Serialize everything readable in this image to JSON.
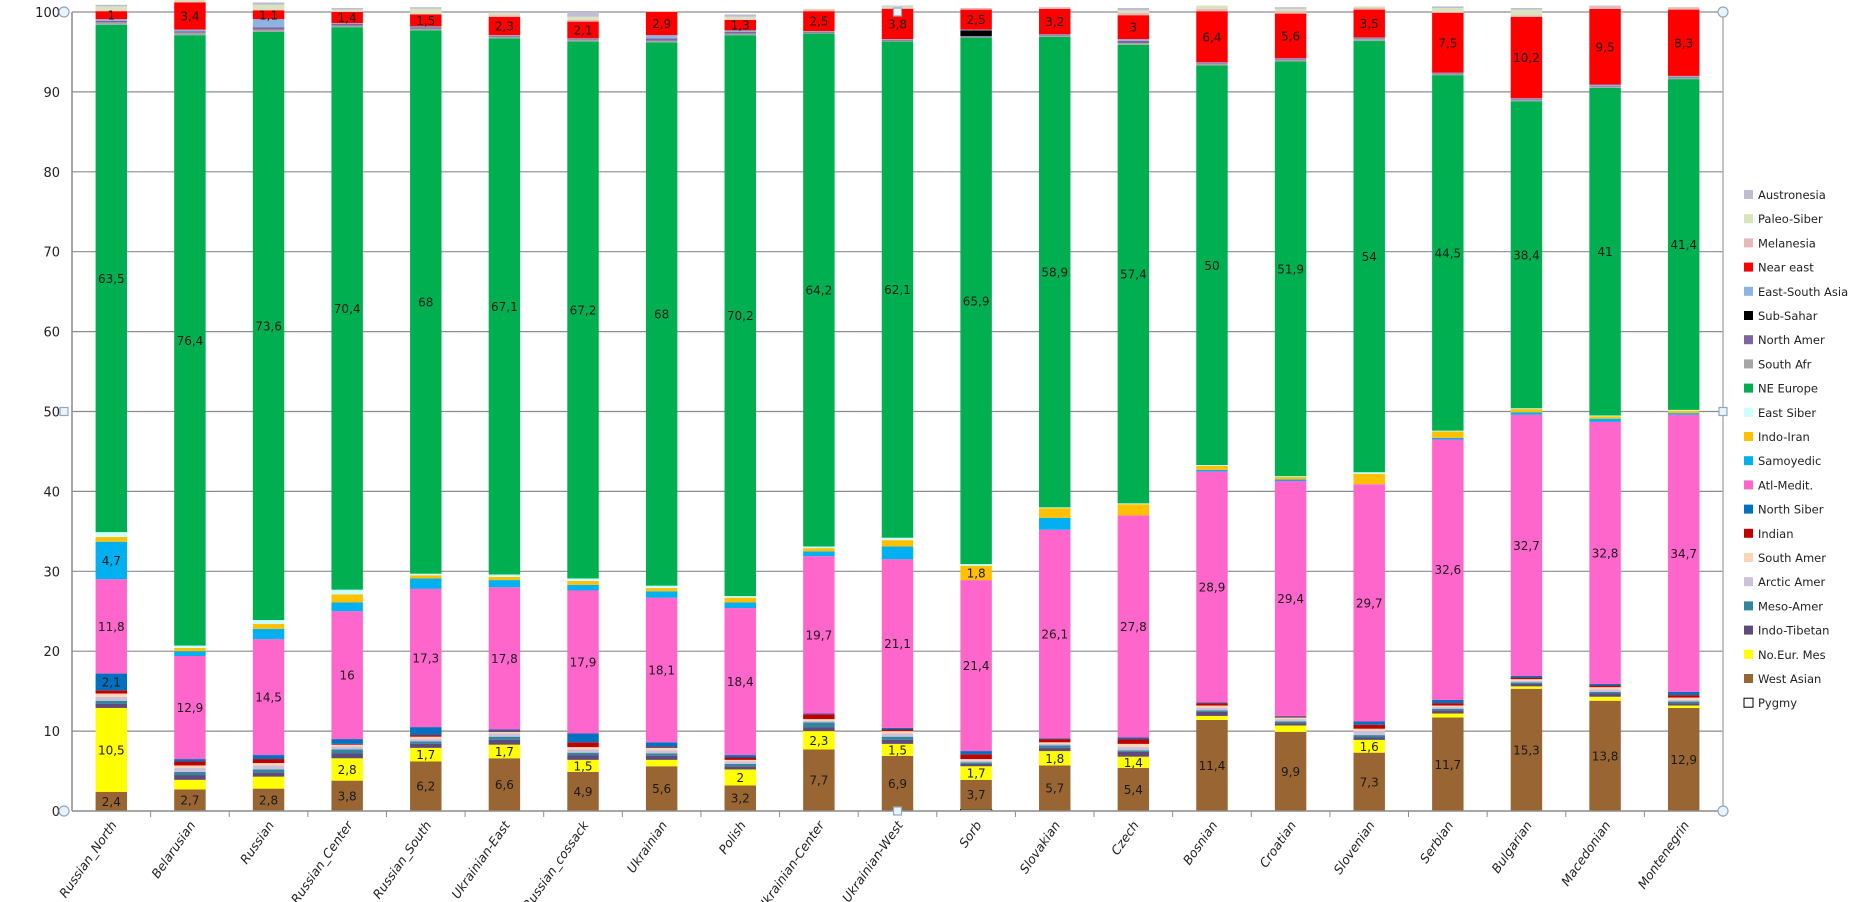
{
  "chart_data": {
    "type": "bar",
    "stacked": true,
    "title": "",
    "xlabel": "",
    "ylabel": "",
    "ylim": [
      0,
      100
    ],
    "yticks": [
      0,
      10,
      20,
      30,
      40,
      50,
      60,
      70,
      80,
      90,
      100
    ],
    "ytick_labels": [
      "0",
      "10",
      "20",
      "30",
      "40",
      "50",
      "60",
      "70",
      "80",
      "90",
      "100"
    ],
    "grid": true,
    "legend_position": "right",
    "categories": [
      "Russian_North",
      "Belarusian",
      "Russian",
      "Russian_Center",
      "Russian_South",
      "Ukrainian-East",
      "Russian_cossack",
      "Ukrainian",
      "Polish",
      "Ukrainian-Center",
      "Ukrainian-West",
      "Sorb",
      "Slovakian",
      "Czech",
      "Bosnian",
      "Croatian",
      "Slovenian",
      "Serbian",
      "Bulgarian",
      "Macedonian",
      "Montenegrin"
    ],
    "series": [
      {
        "name": "Pygmy",
        "color": "#ffffff",
        "values": [
          0,
          0,
          0,
          0,
          0,
          0,
          0,
          0,
          0,
          0,
          0,
          0.2,
          0,
          0,
          0,
          0,
          0,
          0,
          0,
          0,
          0
        ],
        "labels": []
      },
      {
        "name": "West Asian",
        "color": "#996633",
        "values": [
          2.4,
          2.7,
          2.8,
          3.8,
          6.2,
          6.6,
          4.9,
          5.6,
          3.2,
          7.7,
          6.9,
          3.7,
          5.7,
          5.4,
          11.4,
          9.9,
          7.3,
          11.7,
          15.3,
          13.8,
          12.9
        ],
        "labels": [
          "2,4",
          "2,7",
          "2,8",
          "3,8",
          "6,2",
          "6,6",
          "4,9",
          "5,6",
          "3,2",
          "7,7",
          "6,9",
          "3,7",
          "5,7",
          "5,4",
          "11,4",
          "9,9",
          "7,3",
          "11,7",
          "15,3",
          "13,8",
          "12,9"
        ]
      },
      {
        "name": "No.Eur. Mes",
        "color": "#ffff00",
        "values": [
          10.5,
          1.2,
          1.5,
          2.8,
          1.7,
          1.7,
          1.5,
          0.8,
          2,
          2.3,
          1.5,
          1.7,
          1.8,
          1.4,
          0.5,
          0.8,
          1.6,
          0.5,
          0.3,
          0.5,
          0.3
        ],
        "labels": [
          "10,5",
          "",
          "",
          "2,8",
          "1,7",
          "1,7",
          "1,5",
          "",
          "2",
          "2,3",
          "1,5",
          "1,7",
          "1,8",
          "1,4",
          "",
          "",
          "1,6",
          "",
          "",
          "",
          ""
        ]
      },
      {
        "name": "Indo-Tibetan",
        "color": "#604a7b",
        "values": [
          0.5,
          0.6,
          0.5,
          0.6,
          0.5,
          0.6,
          0.6,
          0.5,
          0.4,
          0.5,
          0.5,
          0.3,
          0.4,
          0.6,
          0.5,
          0.3,
          0.3,
          0.4,
          0.3,
          0.4,
          0.3
        ],
        "labels": []
      },
      {
        "name": "Meso-Amer",
        "color": "#31859c",
        "values": [
          0.4,
          0.4,
          0.4,
          0.5,
          0.3,
          0.4,
          0.3,
          0.3,
          0.3,
          0.6,
          0.4,
          0.2,
          0.3,
          0.2,
          0.2,
          0.2,
          0.3,
          0.2,
          0.2,
          0.2,
          0.2
        ],
        "labels": []
      },
      {
        "name": "Arctic Amer",
        "color": "#ccc0da",
        "values": [
          0.5,
          0.5,
          0.5,
          0.4,
          0.3,
          0.4,
          0.4,
          0.4,
          0.3,
          0.2,
          0.4,
          0.2,
          0.2,
          0.4,
          0.3,
          0.3,
          0.5,
          0.2,
          0.2,
          0.3,
          0.2
        ],
        "labels": []
      },
      {
        "name": "South Amer",
        "color": "#fcd5b5",
        "values": [
          0.4,
          0.3,
          0.3,
          0.2,
          0.3,
          0.2,
          0.3,
          0.3,
          0.2,
          0.2,
          0.3,
          0.2,
          0.2,
          0.4,
          0.3,
          0.2,
          0.3,
          0.2,
          0.2,
          0.3,
          0.3
        ],
        "labels": []
      },
      {
        "name": "Indian",
        "color": "#c00000",
        "values": [
          0.4,
          0.5,
          0.5,
          0.1,
          0.2,
          0.1,
          0.6,
          0.1,
          0.3,
          0.6,
          0.2,
          0.6,
          0.4,
          0.6,
          0.3,
          0.1,
          0.5,
          0.3,
          0.2,
          0.2,
          0.3
        ],
        "labels": []
      },
      {
        "name": "North Siber",
        "color": "#0070c0",
        "values": [
          2.1,
          0.3,
          0.5,
          0.6,
          1,
          0.2,
          1.1,
          0.6,
          0.3,
          0.1,
          0.2,
          0.4,
          0.1,
          0.2,
          0.1,
          0.1,
          0.4,
          0.4,
          0.2,
          0.2,
          0.4
        ],
        "labels": [
          "2,1",
          "",
          "",
          "",
          "",
          "",
          "",
          "",
          "",
          "",
          "",
          "",
          "",
          "",
          "",
          "",
          "",
          "",
          "",
          "",
          ""
        ]
      },
      {
        "name": "Atl-Medit.",
        "color": "#ff66cc",
        "values": [
          11.8,
          12.9,
          14.5,
          16,
          17.3,
          17.8,
          17.9,
          18.1,
          18.4,
          19.7,
          21.1,
          21.4,
          26.1,
          27.8,
          28.9,
          29.4,
          29.7,
          32.6,
          32.7,
          32.8,
          34.7
        ],
        "labels": [
          "11,8",
          "12,9",
          "14,5",
          "16",
          "17,3",
          "17,8",
          "17,9",
          "18,1",
          "18,4",
          "19,7",
          "21,1",
          "21,4",
          "26,1",
          "27,8",
          "28,9",
          "29,4",
          "29,7",
          "32,6",
          "32,7",
          "32,8",
          "34,7"
        ]
      },
      {
        "name": "Samoyedic",
        "color": "#00b0f0",
        "values": [
          4.7,
          0.6,
          1.3,
          1.1,
          1.3,
          0.9,
          0.7,
          0.8,
          0.7,
          0.6,
          1.6,
          0,
          1.5,
          0,
          0.2,
          0.2,
          0,
          0.2,
          0.3,
          0.4,
          0.2
        ],
        "labels": [
          "4,7",
          "",
          "",
          "",
          "",
          "",
          "",
          "",
          "",
          "",
          "",
          "",
          "",
          "",
          "",
          "",
          "",
          "",
          "",
          "",
          ""
        ]
      },
      {
        "name": "Indo-Iran",
        "color": "#ffc000",
        "values": [
          0.6,
          0.4,
          0.6,
          1,
          0.4,
          0.4,
          0.5,
          0.4,
          0.6,
          0.4,
          0.8,
          1.8,
          1.2,
          1.4,
          0.5,
          0.3,
          1.3,
          0.8,
          0.4,
          0.3,
          0.3
        ],
        "labels": [
          "",
          "",
          "",
          "",
          "",
          "",
          "",
          "",
          "",
          "",
          "",
          "1,8",
          "",
          "",
          "",
          "",
          "",
          "",
          "",
          "",
          ""
        ]
      },
      {
        "name": "East Siber",
        "color": "#ccffff",
        "values": [
          0.6,
          0.3,
          0.5,
          0.6,
          0.2,
          0.3,
          0.3,
          0.3,
          0.2,
          0.2,
          0.3,
          0.2,
          0.1,
          0.1,
          0.1,
          0.1,
          0.2,
          0.1,
          0.1,
          0.1,
          0.1
        ],
        "labels": []
      },
      {
        "name": "NE Europe",
        "color": "#00b050",
        "values": [
          63.5,
          76.4,
          73.6,
          70.4,
          68,
          67.1,
          67.2,
          68,
          70.2,
          64.2,
          62.1,
          65.9,
          58.9,
          57.4,
          50,
          51.9,
          54,
          44.5,
          38.4,
          41,
          41.4
        ],
        "labels": [
          "63,5",
          "76,4",
          "73,6",
          "70,4",
          "68",
          "67,1",
          "67,2",
          "68",
          "70,2",
          "64,2",
          "62,1",
          "65,9",
          "58,9",
          "57,4",
          "50",
          "51,9",
          "54",
          "44,5",
          "38,4",
          "41",
          "41,4"
        ]
      },
      {
        "name": "South Afr",
        "color": "#a6a6a6",
        "values": [
          0.3,
          0.3,
          0.3,
          0.2,
          0.2,
          0.2,
          0.2,
          0.2,
          0.2,
          0.1,
          0.1,
          0.1,
          0.1,
          0.2,
          0.2,
          0.2,
          0.2,
          0.1,
          0.2,
          0.1,
          0.2
        ],
        "labels": []
      },
      {
        "name": "North Amer",
        "color": "#8064a2",
        "values": [
          0.2,
          0.2,
          0.3,
          0.2,
          0.2,
          0.1,
          0.1,
          0.3,
          0.2,
          0.1,
          0.1,
          0.1,
          0.1,
          0.3,
          0.1,
          0.1,
          0.1,
          0.1,
          0.1,
          0.1,
          0.1
        ],
        "labels": []
      },
      {
        "name": "Sub-Sahar",
        "color": "#000000",
        "values": [
          0,
          0,
          0,
          0,
          0,
          0,
          0,
          0,
          0,
          0,
          0,
          0.7,
          0,
          0,
          0,
          0,
          0,
          0,
          0,
          0,
          0
        ],
        "labels": []
      },
      {
        "name": "East-South Asia",
        "color": "#8db3e2",
        "values": [
          0.2,
          0.2,
          1,
          0.1,
          0.1,
          0.1,
          0.1,
          0.4,
          0.2,
          0.1,
          0.1,
          0.1,
          0.1,
          0.2,
          0.1,
          0.1,
          0.1,
          0.1,
          0.1,
          0.2,
          0.1
        ],
        "labels": []
      },
      {
        "name": "Near east",
        "color": "#ff0000",
        "values": [
          1,
          3.4,
          1.1,
          1.4,
          1.5,
          2.3,
          2.1,
          2.9,
          1.3,
          2.5,
          3.8,
          2.5,
          3.2,
          3,
          6.4,
          5.6,
          3.5,
          7.5,
          10.2,
          9.5,
          8.3
        ],
        "labels": [
          "1",
          "3,4",
          "1,1",
          "1,4",
          "1,5",
          "2,3",
          "2,1",
          "2,9",
          "1,3",
          "2,5",
          "3,8",
          "2,5",
          "3,2",
          "3",
          "6,4",
          "5,6",
          "3,5",
          "7,5",
          "10,2",
          "9,5",
          "8,3"
        ]
      },
      {
        "name": "Melanesia",
        "color": "#e6b9b8",
        "values": [
          0.1,
          0.1,
          0.1,
          0.1,
          0.1,
          0.2,
          0.2,
          0.1,
          0.1,
          0.2,
          0.1,
          0.2,
          0.2,
          0.3,
          0.3,
          0.3,
          0.2,
          0.1,
          0.2,
          0.3,
          0.3
        ],
        "labels": []
      },
      {
        "name": "Paleo-Siber",
        "color": "#d7e4bd",
        "values": [
          0.5,
          0.2,
          0.6,
          0.2,
          0.6,
          0.3,
          0.4,
          0,
          0.3,
          0.1,
          0.2,
          0,
          0,
          0.3,
          0.4,
          0.3,
          0.2,
          0.5,
          0.7,
          0,
          0
        ],
        "labels": []
      },
      {
        "name": "Austronesia",
        "color": "#c0bcd4",
        "values": [
          0.2,
          0.1,
          0.3,
          0.2,
          0.2,
          0.1,
          0.6,
          0,
          0.3,
          0,
          0.1,
          0,
          0,
          0.3,
          0,
          0.2,
          0,
          0.2,
          0.2,
          0.1,
          0
        ],
        "labels": []
      }
    ],
    "legend_order": [
      "Austronesia",
      "Paleo-Siber",
      "Melanesia",
      "Near east",
      "East-South Asia",
      "Sub-Sahar",
      "North Amer",
      "South Afr",
      "NE Europe",
      "East Siber",
      "Indo-Iran",
      "Samoyedic",
      "Atl-Medit.",
      "North Siber",
      "Indian",
      "South Amer",
      "Arctic Amer",
      "Meso-Amer",
      "Indo-Tibetan",
      "No.Eur. Mes",
      "West Asian",
      "Pygmy"
    ]
  }
}
